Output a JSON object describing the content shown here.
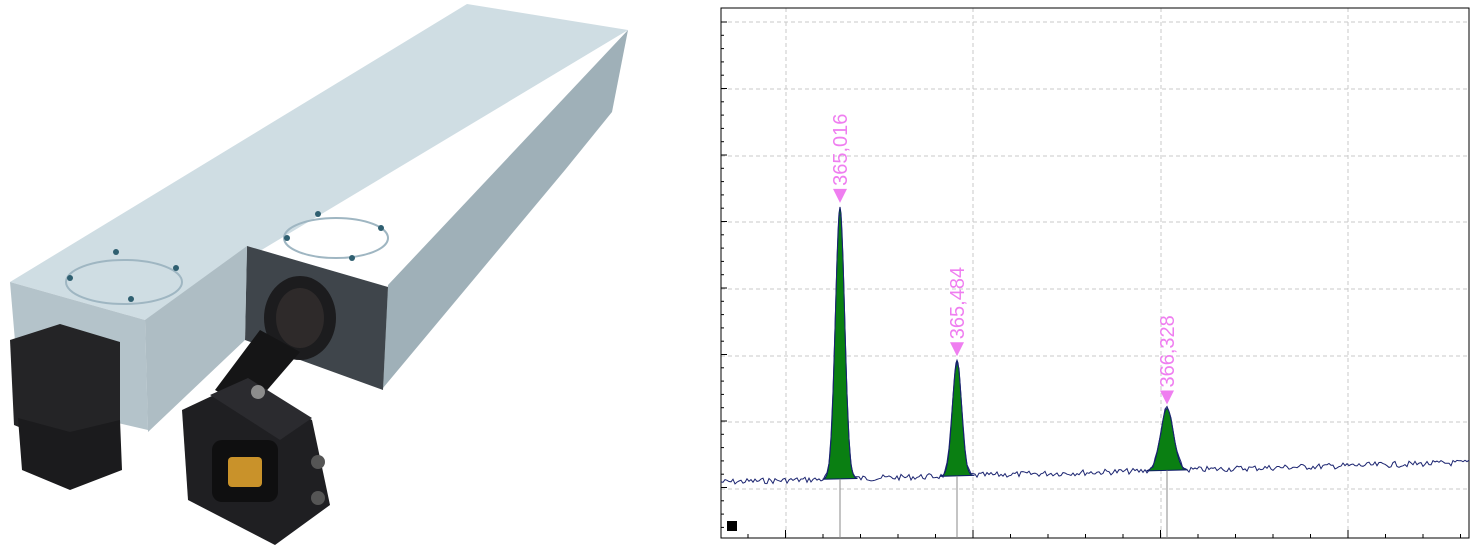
{
  "colors": {
    "background": "#ffffff",
    "housing_top": "#cfdde3",
    "housing_front": "#a9b8c0",
    "housing_dark": "#3a3f44",
    "camera_body": "#1f1f22",
    "sensor_window": "#c9922a",
    "grid": "#c8c8c8",
    "frame": "#000000",
    "baseline": "#1b2470",
    "peak_fill": "#0a7f12",
    "peak_outline": "#0c1a66",
    "peak_label": "#ef7ef0",
    "marker_line": "#8a8a8a"
  },
  "icons": {
    "peak_marker": "triangle-down-icon",
    "corner_marker": "black-square-icon"
  },
  "chart_data": {
    "type": "line",
    "grid": true,
    "peaks": [
      {
        "label": "365,016",
        "x": 365.016,
        "height": 0.835
      },
      {
        "label": "365,484",
        "x": 365.484,
        "height": 0.355
      },
      {
        "label": "366,328",
        "x": 366.328,
        "height": 0.19
      }
    ]
  }
}
